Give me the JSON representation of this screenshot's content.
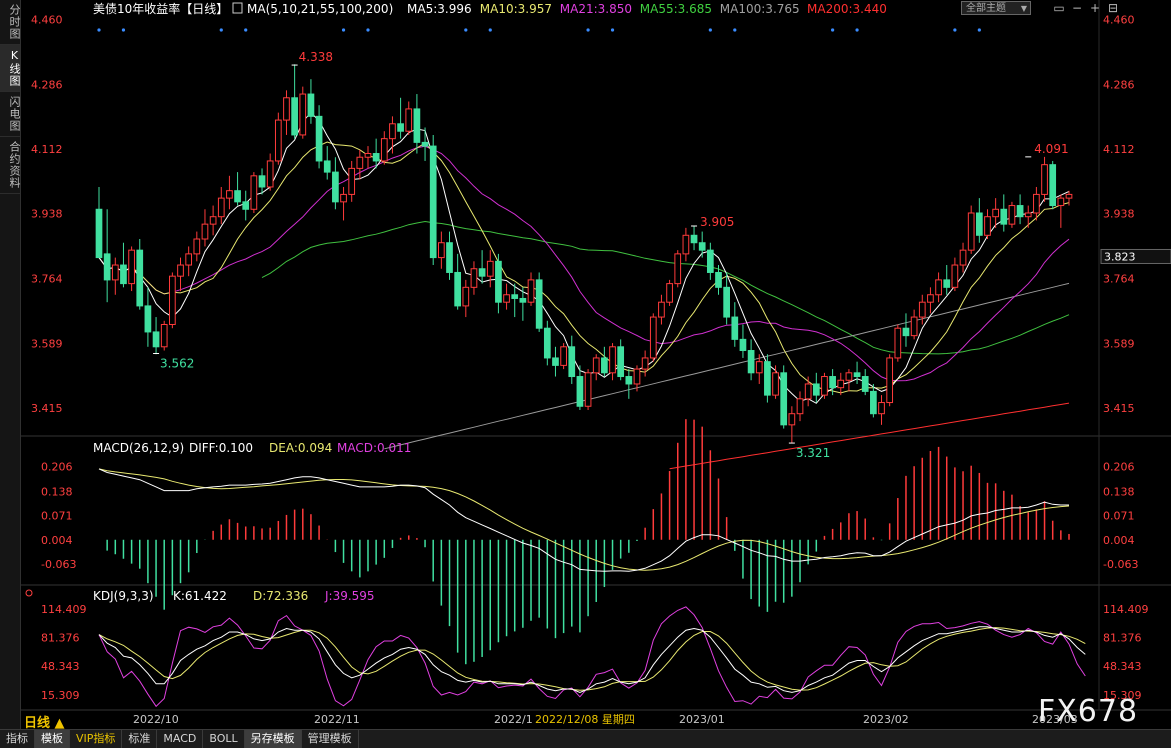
{
  "sidebar": {
    "items": [
      {
        "label": "分时图",
        "active": false
      },
      {
        "label": "K线图",
        "active": true
      },
      {
        "label": "闪电图",
        "active": false
      },
      {
        "label": "合约资料",
        "active": false
      }
    ]
  },
  "main_panel": {
    "title": "美债10年收益率",
    "period_tag": "【日线】",
    "ma_label": "MA(5,10,21,55,100,200)",
    "ma_values": [
      {
        "text": "MA5:3.996",
        "color": "#ffffff"
      },
      {
        "text": "MA10:3.957",
        "color": "#e8e870"
      },
      {
        "text": "MA21:3.850",
        "color": "#e040e0"
      },
      {
        "text": "MA55:3.685",
        "color": "#40d040"
      },
      {
        "text": "MA100:3.765",
        "color": "#a0a0a0"
      },
      {
        "text": "MA200:3.440",
        "color": "#ff3030"
      }
    ],
    "y_ticks": [
      "4.460",
      "4.286",
      "4.112",
      "3.938",
      "3.764",
      "3.589",
      "3.415"
    ],
    "y_tick_values": [
      4.46,
      4.286,
      4.112,
      3.938,
      3.764,
      3.589,
      3.415
    ],
    "current_price": "3.823",
    "annotations": [
      {
        "text": "4.338",
        "color": "#ff3b3b"
      },
      {
        "text": "3.562",
        "color": "#40e0a0"
      },
      {
        "text": "3.905",
        "color": "#ff3b3b"
      },
      {
        "text": "3.321",
        "color": "#40e0a0"
      },
      {
        "text": "4.091",
        "color": "#ff3b3b"
      }
    ]
  },
  "macd_panel": {
    "label": "MACD(26,12,9)",
    "diff": "DIFF:0.100",
    "dea": "DEA:0.094",
    "macd": "MACD:0.011",
    "y_ticks": [
      "0.206",
      "0.138",
      "0.071",
      "0.004",
      "-0.063"
    ]
  },
  "kdj_panel": {
    "label": "KDJ(9,3,3)",
    "k": "K:61.422",
    "d": "D:72.336",
    "j": "J:39.595",
    "y_ticks": [
      "114.409",
      "81.376",
      "48.343",
      "15.309"
    ]
  },
  "x_axis": {
    "labels": [
      "2022/10",
      "2022/11",
      "2022/1",
      "2022/12/08 星期四",
      "2023/01",
      "2023/02",
      "2023/03"
    ]
  },
  "toolbar": {
    "theme_select": "全部主题",
    "period": "日线 ▲",
    "tabs": [
      {
        "label": "指标",
        "active": false,
        "vip": false
      },
      {
        "label": "模板",
        "active": true,
        "vip": false
      },
      {
        "label": "VIP指标",
        "active": false,
        "vip": true
      },
      {
        "label": "标准",
        "active": false,
        "vip": false
      },
      {
        "label": "MACD",
        "active": false,
        "vip": false
      },
      {
        "label": "BOLL",
        "active": false,
        "vip": false
      },
      {
        "label": "另存模板",
        "active": true,
        "vip": false
      },
      {
        "label": "管理模板",
        "active": false,
        "vip": false
      }
    ]
  },
  "watermark": "FX678",
  "colors": {
    "up": "#ff3b3b",
    "down": "#40e0a0",
    "background": "#000000"
  },
  "chart_data": {
    "type": "candlestick",
    "candles_ohlc": [
      [
        3.95,
        4.01,
        3.88,
        3.82
      ],
      [
        3.83,
        3.95,
        3.7,
        3.76
      ],
      [
        3.76,
        3.82,
        3.72,
        3.8
      ],
      [
        3.8,
        3.86,
        3.74,
        3.75
      ],
      [
        3.75,
        3.85,
        3.73,
        3.84
      ],
      [
        3.84,
        3.87,
        3.68,
        3.69
      ],
      [
        3.69,
        3.74,
        3.58,
        3.62
      ],
      [
        3.62,
        3.66,
        3.56,
        3.58
      ],
      [
        3.58,
        3.65,
        3.57,
        3.64
      ],
      [
        3.64,
        3.78,
        3.63,
        3.77
      ],
      [
        3.77,
        3.82,
        3.73,
        3.8
      ],
      [
        3.8,
        3.85,
        3.77,
        3.83
      ],
      [
        3.83,
        3.89,
        3.81,
        3.87
      ],
      [
        3.87,
        3.95,
        3.85,
        3.91
      ],
      [
        3.91,
        3.96,
        3.88,
        3.93
      ],
      [
        3.93,
        4.01,
        3.91,
        3.98
      ],
      [
        3.98,
        4.04,
        3.95,
        4.0
      ],
      [
        4.0,
        4.05,
        3.96,
        3.97
      ],
      [
        3.97,
        4.0,
        3.92,
        3.95
      ],
      [
        3.95,
        4.05,
        3.94,
        4.04
      ],
      [
        4.04,
        4.06,
        3.99,
        4.01
      ],
      [
        4.01,
        4.1,
        4.0,
        4.08
      ],
      [
        4.08,
        4.21,
        4.07,
        4.19
      ],
      [
        4.19,
        4.27,
        4.15,
        4.25
      ],
      [
        4.25,
        4.34,
        4.14,
        4.15
      ],
      [
        4.15,
        4.28,
        4.14,
        4.26
      ],
      [
        4.26,
        4.3,
        4.18,
        4.2
      ],
      [
        4.2,
        4.23,
        4.06,
        4.08
      ],
      [
        4.08,
        4.12,
        4.03,
        4.05
      ],
      [
        4.05,
        4.09,
        3.95,
        3.97
      ],
      [
        3.97,
        4.01,
        3.92,
        3.99
      ],
      [
        3.99,
        4.08,
        3.97,
        4.06
      ],
      [
        4.06,
        4.11,
        4.03,
        4.09
      ],
      [
        4.09,
        4.12,
        4.06,
        4.1
      ],
      [
        4.1,
        4.14,
        4.06,
        4.08
      ],
      [
        4.08,
        4.16,
        4.07,
        4.14
      ],
      [
        4.14,
        4.2,
        4.1,
        4.18
      ],
      [
        4.18,
        4.25,
        4.14,
        4.16
      ],
      [
        4.16,
        4.24,
        4.15,
        4.22
      ],
      [
        4.22,
        4.26,
        4.1,
        4.13
      ],
      [
        4.13,
        4.17,
        4.08,
        4.12
      ],
      [
        4.12,
        4.15,
        3.8,
        3.82
      ],
      [
        3.82,
        3.89,
        3.79,
        3.86
      ],
      [
        3.86,
        3.89,
        3.76,
        3.78
      ],
      [
        3.78,
        3.83,
        3.68,
        3.69
      ],
      [
        3.69,
        3.76,
        3.66,
        3.74
      ],
      [
        3.74,
        3.81,
        3.72,
        3.79
      ],
      [
        3.79,
        3.84,
        3.75,
        3.77
      ],
      [
        3.77,
        3.84,
        3.74,
        3.81
      ],
      [
        3.81,
        3.83,
        3.67,
        3.7
      ],
      [
        3.7,
        3.75,
        3.68,
        3.72
      ],
      [
        3.72,
        3.75,
        3.66,
        3.71
      ],
      [
        3.71,
        3.74,
        3.65,
        3.7
      ],
      [
        3.7,
        3.78,
        3.69,
        3.76
      ],
      [
        3.76,
        3.78,
        3.62,
        3.63
      ],
      [
        3.63,
        3.65,
        3.53,
        3.55
      ],
      [
        3.55,
        3.58,
        3.5,
        3.53
      ],
      [
        3.53,
        3.59,
        3.52,
        3.58
      ],
      [
        3.58,
        3.61,
        3.48,
        3.5
      ],
      [
        3.5,
        3.53,
        3.41,
        3.42
      ],
      [
        3.42,
        3.52,
        3.41,
        3.51
      ],
      [
        3.51,
        3.56,
        3.49,
        3.55
      ],
      [
        3.55,
        3.58,
        3.5,
        3.51
      ],
      [
        3.51,
        3.59,
        3.49,
        3.58
      ],
      [
        3.58,
        3.6,
        3.49,
        3.5
      ],
      [
        3.5,
        3.52,
        3.44,
        3.48
      ],
      [
        3.48,
        3.53,
        3.46,
        3.52
      ],
      [
        3.52,
        3.57,
        3.5,
        3.55
      ],
      [
        3.55,
        3.67,
        3.54,
        3.66
      ],
      [
        3.66,
        3.72,
        3.64,
        3.7
      ],
      [
        3.7,
        3.76,
        3.69,
        3.75
      ],
      [
        3.75,
        3.84,
        3.74,
        3.83
      ],
      [
        3.83,
        3.9,
        3.81,
        3.88
      ],
      [
        3.88,
        3.905,
        3.84,
        3.86
      ],
      [
        3.86,
        3.89,
        3.82,
        3.84
      ],
      [
        3.84,
        3.86,
        3.76,
        3.78
      ],
      [
        3.78,
        3.8,
        3.72,
        3.74
      ],
      [
        3.74,
        3.78,
        3.64,
        3.66
      ],
      [
        3.66,
        3.7,
        3.58,
        3.6
      ],
      [
        3.6,
        3.64,
        3.55,
        3.57
      ],
      [
        3.57,
        3.6,
        3.49,
        3.51
      ],
      [
        3.51,
        3.56,
        3.48,
        3.54
      ],
      [
        3.54,
        3.56,
        3.43,
        3.45
      ],
      [
        3.45,
        3.53,
        3.44,
        3.51
      ],
      [
        3.51,
        3.53,
        3.36,
        3.37
      ],
      [
        3.37,
        3.42,
        3.321,
        3.4
      ],
      [
        3.4,
        3.46,
        3.38,
        3.44
      ],
      [
        3.44,
        3.5,
        3.42,
        3.48
      ],
      [
        3.48,
        3.51,
        3.43,
        3.45
      ],
      [
        3.45,
        3.51,
        3.44,
        3.5
      ],
      [
        3.5,
        3.52,
        3.45,
        3.47
      ],
      [
        3.47,
        3.51,
        3.45,
        3.49
      ],
      [
        3.49,
        3.52,
        3.46,
        3.51
      ],
      [
        3.51,
        3.54,
        3.48,
        3.5
      ],
      [
        3.5,
        3.52,
        3.45,
        3.46
      ],
      [
        3.46,
        3.48,
        3.39,
        3.4
      ],
      [
        3.4,
        3.45,
        3.37,
        3.43
      ],
      [
        3.43,
        3.56,
        3.42,
        3.55
      ],
      [
        3.55,
        3.64,
        3.54,
        3.63
      ],
      [
        3.63,
        3.67,
        3.58,
        3.61
      ],
      [
        3.61,
        3.68,
        3.6,
        3.66
      ],
      [
        3.66,
        3.72,
        3.64,
        3.7
      ],
      [
        3.7,
        3.74,
        3.67,
        3.72
      ],
      [
        3.72,
        3.78,
        3.7,
        3.76
      ],
      [
        3.76,
        3.8,
        3.72,
        3.74
      ],
      [
        3.74,
        3.82,
        3.73,
        3.8
      ],
      [
        3.8,
        3.86,
        3.78,
        3.84
      ],
      [
        3.84,
        3.96,
        3.83,
        3.94
      ],
      [
        3.94,
        3.98,
        3.86,
        3.88
      ],
      [
        3.88,
        3.95,
        3.87,
        3.93
      ],
      [
        3.93,
        3.98,
        3.9,
        3.95
      ],
      [
        3.95,
        3.99,
        3.89,
        3.91
      ],
      [
        3.91,
        3.97,
        3.9,
        3.96
      ],
      [
        3.96,
        3.99,
        3.91,
        3.93
      ],
      [
        3.93,
        3.96,
        3.9,
        3.94
      ],
      [
        3.94,
        4.01,
        3.92,
        3.99
      ],
      [
        3.99,
        4.091,
        3.97,
        4.07
      ],
      [
        4.07,
        4.08,
        3.95,
        3.96
      ],
      [
        3.96,
        3.99,
        3.9,
        3.98
      ],
      [
        3.98,
        4.0,
        3.96,
        3.99
      ]
    ],
    "ylim": [
      3.34,
      4.47
    ],
    "moving_averages": [
      "MA5",
      "MA10",
      "MA21",
      "MA55",
      "MA100",
      "MA200"
    ],
    "extremes": {
      "high_1": 4.338,
      "low_1": 3.562,
      "high_2": 3.905,
      "low_2": 3.321,
      "high_3": 4.091
    },
    "macd": {
      "ylim": [
        -0.11,
        0.23
      ],
      "diff": [
        0.2,
        0.19,
        0.185,
        0.18,
        0.175,
        0.17,
        0.16,
        0.15,
        0.14,
        0.14,
        0.14,
        0.14,
        0.145,
        0.148,
        0.15,
        0.152,
        0.155,
        0.155,
        0.155,
        0.157,
        0.158,
        0.16,
        0.165,
        0.17,
        0.175,
        0.178,
        0.178,
        0.175,
        0.17,
        0.165,
        0.16,
        0.155,
        0.15,
        0.15,
        0.15,
        0.15,
        0.152,
        0.155,
        0.155,
        0.153,
        0.148,
        0.13,
        0.115,
        0.1,
        0.08,
        0.065,
        0.055,
        0.045,
        0.035,
        0.025,
        0.015,
        0.005,
        -0.005,
        -0.012,
        -0.02,
        -0.035,
        -0.05,
        -0.058,
        -0.065,
        -0.078,
        -0.08,
        -0.082,
        -0.083,
        -0.082,
        -0.082,
        -0.083,
        -0.08,
        -0.075,
        -0.065,
        -0.055,
        -0.04,
        -0.02,
        0.0,
        0.01,
        0.018,
        0.018,
        0.015,
        0.005,
        -0.005,
        -0.015,
        -0.025,
        -0.032,
        -0.04,
        -0.042,
        -0.05,
        -0.055,
        -0.055,
        -0.052,
        -0.05,
        -0.045,
        -0.043,
        -0.04,
        -0.035,
        -0.032,
        -0.033,
        -0.04,
        -0.04,
        -0.03,
        -0.015,
        0.0,
        0.01,
        0.02,
        0.03,
        0.04,
        0.045,
        0.05,
        0.058,
        0.07,
        0.075,
        0.078,
        0.085,
        0.088,
        0.092,
        0.092,
        0.094,
        0.1,
        0.108,
        0.102,
        0.1,
        0.1
      ],
      "dea_label": "DEA:0.094"
    },
    "kdj": {
      "ylim": [
        0,
        125
      ],
      "k": [
        85,
        75,
        70,
        60,
        58,
        50,
        40,
        28,
        28,
        40,
        55,
        62,
        68,
        72,
        78,
        82,
        88,
        88,
        85,
        80,
        78,
        80,
        88,
        92,
        90,
        90,
        88,
        80,
        65,
        50,
        40,
        35,
        38,
        45,
        52,
        58,
        62,
        68,
        70,
        68,
        62,
        50,
        42,
        38,
        32,
        30,
        32,
        30,
        31,
        28,
        28,
        28,
        27,
        30,
        26,
        22,
        20,
        22,
        22,
        18,
        22,
        28,
        30,
        34,
        30,
        28,
        30,
        35,
        50,
        62,
        72,
        82,
        90,
        92,
        90,
        82,
        70,
        58,
        45,
        38,
        30,
        28,
        24,
        25,
        20,
        18,
        20,
        26,
        30,
        35,
        38,
        45,
        52,
        55,
        55,
        48,
        42,
        48,
        58,
        65,
        72,
        78,
        82,
        86,
        86,
        88,
        90,
        92,
        94,
        94,
        92,
        90,
        88,
        88,
        90,
        88,
        84,
        82,
        86,
        80,
        70,
        62
      ]
    }
  }
}
